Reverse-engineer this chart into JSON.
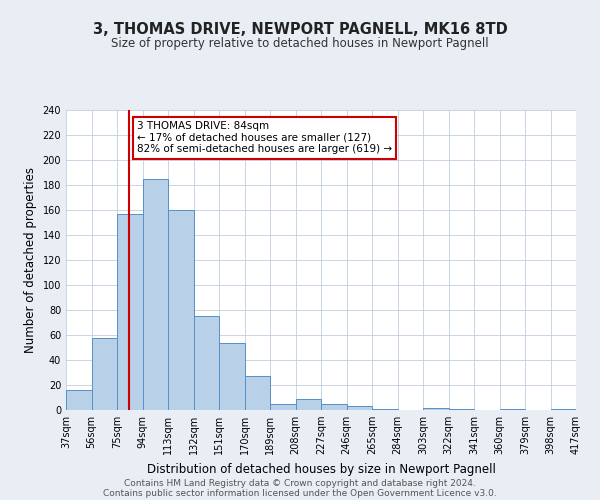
{
  "title": "3, THOMAS DRIVE, NEWPORT PAGNELL, MK16 8TD",
  "subtitle": "Size of property relative to detached houses in Newport Pagnell",
  "xlabel": "Distribution of detached houses by size in Newport Pagnell",
  "ylabel": "Number of detached properties",
  "bin_labels": [
    "37sqm",
    "56sqm",
    "75sqm",
    "94sqm",
    "113sqm",
    "132sqm",
    "151sqm",
    "170sqm",
    "189sqm",
    "208sqm",
    "227sqm",
    "246sqm",
    "265sqm",
    "284sqm",
    "303sqm",
    "322sqm",
    "341sqm",
    "360sqm",
    "379sqm",
    "398sqm",
    "417sqm"
  ],
  "bar_values": [
    16,
    58,
    157,
    185,
    160,
    75,
    54,
    27,
    5,
    9,
    5,
    3,
    1,
    0,
    2,
    1,
    0,
    1,
    0,
    1
  ],
  "bin_edges": [
    37,
    56,
    75,
    94,
    113,
    132,
    151,
    170,
    189,
    208,
    227,
    246,
    265,
    284,
    303,
    322,
    341,
    360,
    379,
    398,
    417
  ],
  "bar_color": "#b8d0e8",
  "bar_edge_color": "#5590c8",
  "reference_line_x": 84,
  "reference_line_color": "#cc0000",
  "ylim": [
    0,
    240
  ],
  "yticks": [
    0,
    20,
    40,
    60,
    80,
    100,
    120,
    140,
    160,
    180,
    200,
    220,
    240
  ],
  "annotation_title": "3 THOMAS DRIVE: 84sqm",
  "annotation_line1": "← 17% of detached houses are smaller (127)",
  "annotation_line2": "82% of semi-detached houses are larger (619) →",
  "annotation_box_color": "#cc0000",
  "footer_line1": "Contains HM Land Registry data © Crown copyright and database right 2024.",
  "footer_line2": "Contains public sector information licensed under the Open Government Licence v3.0.",
  "background_color": "#e8eef4",
  "plot_background_color": "#ffffff",
  "title_fontsize": 10.5,
  "subtitle_fontsize": 8.5,
  "axis_label_fontsize": 8.5,
  "tick_fontsize": 7,
  "annotation_fontsize": 7.5,
  "footer_fontsize": 6.5
}
